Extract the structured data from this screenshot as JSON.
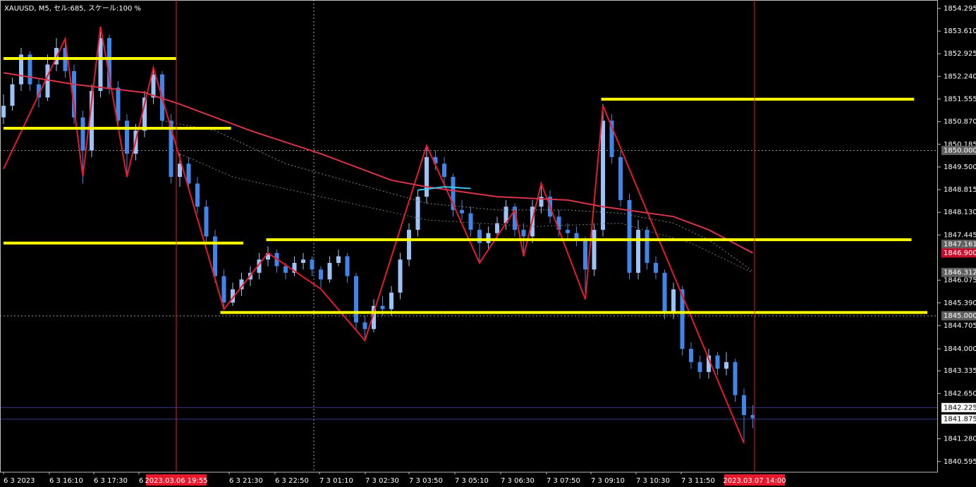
{
  "chart_data": {
    "type": "candlestick",
    "title": "XAUUSD, M5, セル:685, スケール:100 %",
    "ylim": [
      1840.27,
      1854.55
    ],
    "yticks": [
      1854.295,
      {
        "value": 1853.61,
        "label": "1853.610"
      },
      1852.925,
      {
        "value": 1852.24,
        "label": "1852.240"
      },
      1851.555,
      {
        "value": 1850.87,
        "label": "1850.870"
      },
      1850.185,
      {
        "value": 1849.5,
        "label": "1849.500"
      },
      1848.815,
      {
        "value": 1848.13,
        "label": "1848.130"
      },
      1847.445,
      1846.075,
      {
        "value": 1845.39,
        "label": "1845.390"
      },
      1844.705,
      {
        "value": 1844,
        "label": "1844.000"
      },
      1843.335,
      {
        "value": 1842.65,
        "label": "1842.650"
      },
      {
        "value": 1841.28,
        "label": "1841.280"
      },
      1840.595
    ],
    "categories": [
      "6 3 2023",
      "6 3 16:10",
      "6 3 17:30",
      "6",
      "6 3 21:30",
      "6 3 22:50",
      "7 3 01:10",
      "7 3 02:30",
      "7 3 03:50",
      "7 3 05:10",
      "7 3 06:30",
      "7 3 07:50",
      "7 3 09:10",
      "7 3 10:30",
      "7 3 11:50"
    ],
    "up_color": "#9cc3f7",
    "down_color": "#3f86e8",
    "candles": [
      [
        1851.0,
        1851.7,
        1850.8,
        1851.35
      ],
      [
        1851.35,
        1852.2,
        1851.2,
        1852.0
      ],
      [
        1852.0,
        1853.1,
        1851.8,
        1852.9
      ],
      [
        1852.9,
        1853.0,
        1851.8,
        1852.0
      ],
      [
        1852.0,
        1852.2,
        1851.3,
        1851.6
      ],
      [
        1851.6,
        1852.9,
        1851.5,
        1852.6
      ],
      [
        1852.6,
        1853.4,
        1852.4,
        1853.1
      ],
      [
        1853.1,
        1853.3,
        1852.2,
        1852.4
      ],
      [
        1852.4,
        1852.6,
        1850.8,
        1851.0
      ],
      [
        1851.0,
        1851.2,
        1849.0,
        1850.0
      ],
      [
        1850.0,
        1852.0,
        1849.8,
        1851.8
      ],
      [
        1851.8,
        1853.75,
        1851.6,
        1853.4
      ],
      [
        1853.4,
        1853.5,
        1851.7,
        1851.9
      ],
      [
        1851.9,
        1852.1,
        1850.7,
        1850.9
      ],
      [
        1850.9,
        1851.1,
        1849.2,
        1849.9
      ],
      [
        1849.9,
        1850.8,
        1849.7,
        1850.6
      ],
      [
        1850.6,
        1851.8,
        1850.4,
        1851.6
      ],
      [
        1851.6,
        1852.55,
        1851.4,
        1852.3
      ],
      [
        1852.3,
        1852.4,
        1850.7,
        1850.9
      ],
      [
        1850.9,
        1851.1,
        1849.0,
        1849.2
      ],
      [
        1849.2,
        1849.9,
        1848.9,
        1849.6
      ],
      [
        1849.6,
        1849.8,
        1848.8,
        1849.0
      ],
      [
        1849.0,
        1849.2,
        1848.1,
        1848.3
      ],
      [
        1848.3,
        1848.5,
        1847.2,
        1847.4
      ],
      [
        1847.4,
        1847.6,
        1846.0,
        1846.2
      ],
      [
        1846.2,
        1846.4,
        1845.2,
        1845.4
      ],
      [
        1845.4,
        1846.0,
        1845.3,
        1845.8
      ],
      [
        1845.8,
        1846.3,
        1845.6,
        1846.1
      ],
      [
        1846.1,
        1846.5,
        1845.9,
        1846.3
      ],
      [
        1846.3,
        1846.9,
        1846.1,
        1846.7
      ],
      [
        1846.7,
        1847.1,
        1846.5,
        1846.9
      ],
      [
        1846.9,
        1847.0,
        1846.3,
        1846.5
      ],
      [
        1846.5,
        1846.6,
        1846.1,
        1846.3
      ],
      [
        1846.3,
        1846.8,
        1846.2,
        1846.6
      ],
      [
        1846.6,
        1846.9,
        1846.4,
        1846.7
      ],
      [
        1846.7,
        1846.8,
        1846.2,
        1846.4
      ],
      [
        1846.4,
        1846.5,
        1845.8,
        1846.1
      ],
      [
        1846.1,
        1846.8,
        1846.0,
        1846.6
      ],
      [
        1846.6,
        1847.0,
        1846.5,
        1846.8
      ],
      [
        1846.8,
        1846.9,
        1846.0,
        1846.2
      ],
      [
        1846.2,
        1846.3,
        1844.6,
        1844.8
      ],
      [
        1844.8,
        1845.0,
        1844.25,
        1844.6
      ],
      [
        1844.6,
        1845.5,
        1844.5,
        1845.3
      ],
      [
        1845.3,
        1845.6,
        1845.0,
        1845.2
      ],
      [
        1845.2,
        1845.9,
        1845.0,
        1845.7
      ],
      [
        1845.7,
        1846.9,
        1845.5,
        1846.7
      ],
      [
        1846.7,
        1847.8,
        1846.5,
        1847.6
      ],
      [
        1847.6,
        1848.8,
        1847.4,
        1848.6
      ],
      [
        1848.6,
        1850.15,
        1848.4,
        1849.8
      ],
      [
        1849.8,
        1850.0,
        1849.4,
        1849.6
      ],
      [
        1849.6,
        1849.8,
        1849.0,
        1849.2
      ],
      [
        1849.2,
        1849.3,
        1848.0,
        1848.2
      ],
      [
        1848.2,
        1848.5,
        1847.9,
        1848.1
      ],
      [
        1848.1,
        1848.3,
        1847.4,
        1847.6
      ],
      [
        1847.6,
        1847.8,
        1846.6,
        1847.2
      ],
      [
        1847.2,
        1847.7,
        1847.0,
        1847.5
      ],
      [
        1847.5,
        1848.0,
        1847.3,
        1847.8
      ],
      [
        1847.8,
        1848.5,
        1847.6,
        1848.3
      ],
      [
        1848.3,
        1848.4,
        1847.4,
        1847.6
      ],
      [
        1847.6,
        1847.8,
        1846.8,
        1847.4
      ],
      [
        1847.4,
        1848.5,
        1847.2,
        1848.3
      ],
      [
        1848.3,
        1849.0,
        1848.1,
        1848.6
      ],
      [
        1848.6,
        1848.8,
        1847.8,
        1848.0
      ],
      [
        1848.0,
        1848.2,
        1847.4,
        1847.6
      ],
      [
        1847.6,
        1847.8,
        1847.3,
        1847.5
      ],
      [
        1847.5,
        1847.7,
        1847.1,
        1847.3
      ],
      [
        1847.3,
        1847.4,
        1845.5,
        1846.4
      ],
      [
        1846.4,
        1847.8,
        1846.2,
        1847.6
      ],
      [
        1847.6,
        1851.4,
        1847.4,
        1850.9
      ],
      [
        1850.9,
        1851.1,
        1849.6,
        1849.8
      ],
      [
        1849.8,
        1850.0,
        1848.3,
        1848.5
      ],
      [
        1848.5,
        1848.7,
        1846.1,
        1846.3
      ],
      [
        1846.3,
        1847.9,
        1846.1,
        1847.6
      ],
      [
        1847.6,
        1847.7,
        1846.4,
        1846.6
      ],
      [
        1846.6,
        1846.8,
        1846.1,
        1846.3
      ],
      [
        1846.3,
        1846.4,
        1844.9,
        1845.1
      ],
      [
        1845.1,
        1846.0,
        1844.9,
        1845.8
      ],
      [
        1845.8,
        1845.9,
        1843.8,
        1844.0
      ],
      [
        1844.0,
        1844.2,
        1843.4,
        1843.6
      ],
      [
        1843.6,
        1843.8,
        1843.1,
        1843.3
      ],
      [
        1843.3,
        1844.0,
        1843.1,
        1843.8
      ],
      [
        1843.8,
        1843.9,
        1843.2,
        1843.4
      ],
      [
        1843.4,
        1843.9,
        1843.2,
        1843.6
      ],
      [
        1843.6,
        1843.7,
        1842.4,
        1842.6
      ],
      [
        1842.6,
        1842.8,
        1841.15,
        1842.0
      ],
      [
        1842.0,
        1842.3,
        1841.6,
        1841.9
      ]
    ],
    "lines": [
      {
        "color": "#e8192c",
        "width": 2,
        "dash": false,
        "x": [
          0,
          7,
          9,
          11,
          14,
          17,
          25,
          30,
          36,
          41,
          48,
          54,
          58,
          59,
          61,
          66,
          68,
          84
        ],
        "values": [
          1849.44,
          1853.38,
          1849.22,
          1853.75,
          1849.2,
          1852.5,
          1845.2,
          1846.9,
          1845.81,
          1844.25,
          1850.15,
          1846.6,
          1848.2,
          1846.8,
          1849.0,
          1845.5,
          1851.35,
          1841.15
        ]
      },
      {
        "color": "#d9344a",
        "width": 2,
        "dash": false,
        "x": [
          0,
          8,
          16,
          20,
          28,
          36,
          44,
          48,
          56,
          64,
          68,
          76,
          80,
          85
        ],
        "values": [
          1852.35,
          1852.0,
          1851.75,
          1851.4,
          1850.6,
          1849.9,
          1849.1,
          1848.9,
          1848.6,
          1848.5,
          1848.3,
          1848.0,
          1847.6,
          1846.9
        ]
      },
      {
        "color": "#3ec8f0",
        "width": 2,
        "dash": false,
        "x": [
          47,
          50,
          53
        ],
        "values": [
          1848.8,
          1848.9,
          1848.85
        ]
      },
      {
        "color": "#888888",
        "width": 1,
        "dash": true,
        "x": [
          18,
          24,
          32,
          40,
          48,
          56,
          64,
          70,
          76,
          80,
          85
        ],
        "values": [
          1850.9,
          1850.6,
          1849.6,
          1849.0,
          1848.4,
          1848.2,
          1848.2,
          1848.1,
          1847.8,
          1847.3,
          1846.35
        ]
      },
      {
        "color": "#777777",
        "width": 1,
        "dash": true,
        "x": [
          20,
          26,
          36,
          48,
          60,
          70,
          78,
          85
        ],
        "values": [
          1849.9,
          1849.2,
          1848.6,
          1847.9,
          1847.7,
          1847.8,
          1847.2,
          1846.3
        ]
      }
    ],
    "levels": {
      "color": "#ffff00",
      "items": [
        {
          "price": 1852.78,
          "from": 0,
          "to": 19.6
        },
        {
          "price": 1850.67,
          "from": 0,
          "to": 25.8
        },
        {
          "price": 1847.2,
          "from": 0,
          "to": 27.2
        },
        {
          "price": 1847.3,
          "from": 29.8,
          "to": 103
        },
        {
          "price": 1845.1,
          "from": 24.6,
          "to": 104.8
        },
        {
          "price": 1851.55,
          "from": 67.8,
          "to": 103.3
        }
      ]
    },
    "price_lines": [
      {
        "value": 1850,
        "label": "1850.000",
        "box": "#606060",
        "line": "dotted"
      },
      {
        "value": 1847.161,
        "box": "#606060",
        "line": "none"
      },
      {
        "value": 1846.9,
        "label": "1846.900",
        "box": "#c8102e",
        "line": "none"
      },
      {
        "value": 1846.312,
        "box": "#606060",
        "line": "none"
      },
      {
        "value": 1845,
        "label": "1845.000",
        "box": "#606060",
        "line": "dotted"
      },
      {
        "value": 1842.225,
        "box": "#ffffff",
        "line": "solid"
      },
      {
        "value": 1841.875,
        "box": "#ffffff",
        "line": "solid"
      }
    ],
    "cursors": {
      "color": "#e8192c",
      "items": [
        {
          "label": "2023.03.06 19:55"
        },
        {
          "label": "2023.03.07 14:00"
        }
      ]
    }
  }
}
